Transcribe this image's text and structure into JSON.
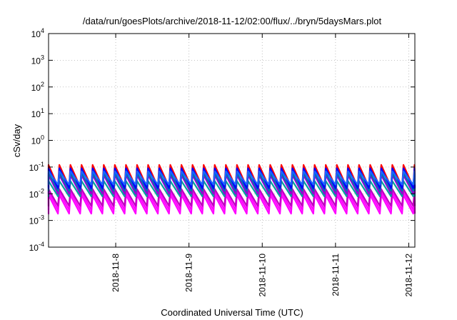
{
  "chart_data": {
    "type": "line",
    "title": "/data/run/goesPlots/archive/2018-11-12/02:00/flux/../bryn/5daysMars.plot",
    "xlabel": "Coordinated Universal Time (UTC)",
    "ylabel": "cSv/day",
    "y_scale": "log",
    "ylim": [
      0.0001,
      10000
    ],
    "y_ticks": [
      {
        "base": "10",
        "exp": "-4"
      },
      {
        "base": "10",
        "exp": "-3"
      },
      {
        "base": "10",
        "exp": "-2"
      },
      {
        "base": "10",
        "exp": "-1"
      },
      {
        "base": "10",
        "exp": "0"
      },
      {
        "base": "10",
        "exp": "1"
      },
      {
        "base": "10",
        "exp": "2"
      },
      {
        "base": "10",
        "exp": "3"
      },
      {
        "base": "10",
        "exp": "4"
      }
    ],
    "x_ticks": [
      "2018-11-8",
      "2018-11-9",
      "2018-11-10",
      "2018-11-11",
      "2018-11-12"
    ],
    "xlim": [
      "2018-11-07T02:00",
      "2018-11-12T02:00"
    ],
    "grid": true,
    "pattern": {
      "description_of_data": "sawtooth time series repeating about every 3.7 hours",
      "cycles": 33
    },
    "series": [
      {
        "color": "#ff00ff",
        "peak": 0.009,
        "trough": 0.0018
      },
      {
        "color": "#ff00ff",
        "peak": 0.012,
        "trough": 0.0025
      },
      {
        "color": "#c000c0",
        "peak": 0.015,
        "trough": 0.0035
      },
      {
        "color": "#00a0a0",
        "peak": 0.03,
        "trough": 0.008
      },
      {
        "color": "#9400d3",
        "peak": 0.05,
        "trough": 0.01
      },
      {
        "color": "#0072b2",
        "peak": 0.06,
        "trough": 0.013
      },
      {
        "color": "#ff0000",
        "peak": 0.12,
        "trough": 0.018
      },
      {
        "color": "#0000ff",
        "peak": 0.09,
        "trough": 0.016
      },
      {
        "color": "#1a66ff",
        "peak": 0.07,
        "trough": 0.022
      }
    ]
  }
}
